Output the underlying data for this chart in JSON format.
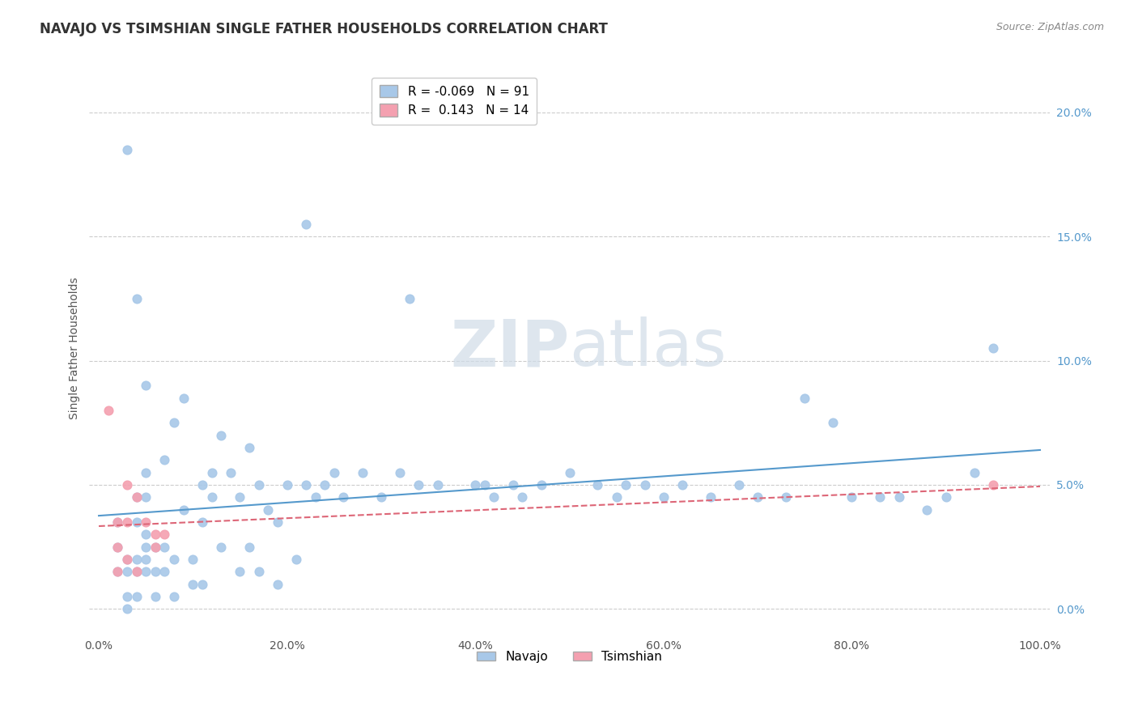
{
  "title": "NAVAJO VS TSIMSHIAN SINGLE FATHER HOUSEHOLDS CORRELATION CHART",
  "source": "Source: ZipAtlas.com",
  "ylabel": "Single Father Households",
  "xlim": [
    0,
    100
  ],
  "ylim": [
    -1,
    21
  ],
  "navajo_R": "-0.069",
  "navajo_N": "91",
  "tsimshian_R": "0.143",
  "tsimshian_N": "14",
  "navajo_color": "#a8c8e8",
  "tsimshian_color": "#f4a0b0",
  "navajo_line_color": "#5599cc",
  "tsimshian_line_color": "#dd6677",
  "watermark_zip": "ZIP",
  "watermark_atlas": "atlas",
  "navajo_x": [
    2,
    2,
    2,
    3,
    3,
    3,
    3,
    3,
    4,
    4,
    4,
    4,
    4,
    4,
    5,
    5,
    5,
    5,
    5,
    5,
    5,
    6,
    6,
    6,
    7,
    7,
    7,
    8,
    8,
    8,
    9,
    9,
    10,
    10,
    11,
    11,
    11,
    12,
    12,
    13,
    13,
    14,
    15,
    15,
    16,
    16,
    17,
    17,
    18,
    19,
    19,
    20,
    21,
    22,
    22,
    23,
    24,
    25,
    26,
    28,
    30,
    32,
    33,
    34,
    36,
    40,
    41,
    42,
    44,
    45,
    47,
    50,
    53,
    55,
    56,
    58,
    60,
    62,
    65,
    68,
    70,
    73,
    75,
    78,
    80,
    83,
    85,
    88,
    90,
    93,
    95
  ],
  "navajo_y": [
    3.5,
    2.5,
    1.5,
    18.5,
    2.0,
    1.5,
    0.5,
    0.0,
    12.5,
    4.5,
    3.5,
    2.0,
    1.5,
    0.5,
    9.0,
    5.5,
    4.5,
    3.0,
    2.5,
    2.0,
    1.5,
    2.5,
    1.5,
    0.5,
    6.0,
    2.5,
    1.5,
    7.5,
    2.0,
    0.5,
    8.5,
    4.0,
    2.0,
    1.0,
    5.0,
    3.5,
    1.0,
    5.5,
    4.5,
    7.0,
    2.5,
    5.5,
    4.5,
    1.5,
    6.5,
    2.5,
    5.0,
    1.5,
    4.0,
    3.5,
    1.0,
    5.0,
    2.0,
    15.5,
    5.0,
    4.5,
    5.0,
    5.5,
    4.5,
    5.5,
    4.5,
    5.5,
    12.5,
    5.0,
    5.0,
    5.0,
    5.0,
    4.5,
    5.0,
    4.5,
    5.0,
    5.5,
    5.0,
    4.5,
    5.0,
    5.0,
    4.5,
    5.0,
    4.5,
    5.0,
    4.5,
    4.5,
    8.5,
    7.5,
    4.5,
    4.5,
    4.5,
    4.0,
    4.5,
    5.5,
    10.5
  ],
  "tsimshian_x": [
    1,
    2,
    2,
    2,
    3,
    3,
    3,
    4,
    4,
    5,
    6,
    6,
    7,
    95
  ],
  "tsimshian_y": [
    8.0,
    3.5,
    2.5,
    1.5,
    5.0,
    3.5,
    2.0,
    4.5,
    1.5,
    3.5,
    3.0,
    2.5,
    3.0,
    5.0
  ],
  "title_fontsize": 12,
  "source_fontsize": 9,
  "tick_fontsize": 10,
  "ylabel_fontsize": 10
}
